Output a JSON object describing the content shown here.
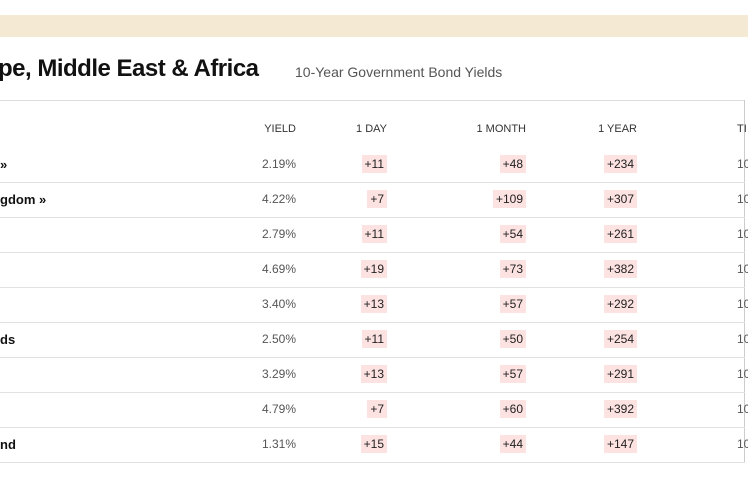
{
  "header": {
    "title": "pe, Middle East & Africa",
    "subtitle": "10-Year Government Bond Yields"
  },
  "table": {
    "columns": [
      "YIELD",
      "1 DAY",
      "1 MONTH",
      "1 YEAR",
      "TI"
    ],
    "rows": [
      {
        "name": "»",
        "cells": [
          "2.19%",
          "+11",
          "+48",
          "+234",
          "10"
        ]
      },
      {
        "name": "gdom »",
        "cells": [
          "4.22%",
          "+7",
          "+109",
          "+307",
          "10"
        ]
      },
      {
        "cells": [
          "2.79%",
          "+11",
          "+54",
          "+261",
          "10"
        ]
      },
      {
        "cells": [
          "4.69%",
          "+19",
          "+73",
          "+382",
          "10"
        ]
      },
      {
        "cells": [
          "3.40%",
          "+13",
          "+57",
          "+292",
          "10"
        ]
      },
      {
        "name": "ds",
        "cells": [
          "2.50%",
          "+11",
          "+50",
          "+254",
          "10"
        ]
      },
      {
        "cells": [
          "3.29%",
          "+13",
          "+57",
          "+291",
          "10"
        ]
      },
      {
        "cells": [
          "4.79%",
          "+7",
          "+60",
          "+392",
          "10"
        ]
      },
      {
        "name": "nd",
        "cells": [
          "1.31%",
          "+15",
          "+44",
          "+147",
          "10"
        ]
      }
    ]
  }
}
